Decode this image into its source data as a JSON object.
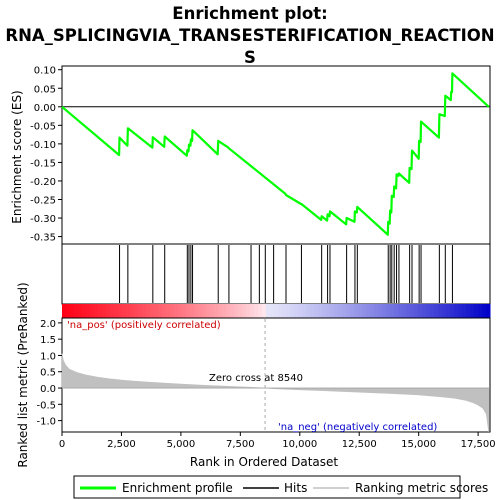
{
  "chart_data": {
    "type": "line",
    "title": "Enrichment plot: RNA_SPLICINGVIA_TRANSESTERIFICATION_REACTIONS",
    "title_lines": [
      "Enrichment plot:",
      "RNA_SPLICINGVIA_TRANSESTERIFICATION_REACTION",
      "S"
    ],
    "top_panel": {
      "ylabel": "Enrichment score (ES)",
      "ylim": [
        -0.37,
        0.11
      ],
      "yticks": [
        0.1,
        0.05,
        0.0,
        -0.05,
        -0.1,
        -0.15,
        -0.2,
        -0.25,
        -0.3,
        -0.35
      ],
      "ytick_labels": [
        "0.10",
        "0.05",
        "0.00",
        "-0.05",
        "-0.10",
        "-0.15",
        "-0.20",
        "-0.25",
        "-0.30",
        "-0.35"
      ],
      "series": [
        {
          "name": "Enrichment profile",
          "color": "#00ff00",
          "x": [
            0,
            2400,
            2420,
            2750,
            2770,
            3800,
            3820,
            4300,
            4320,
            5250,
            5270,
            5320,
            5340,
            5400,
            5420,
            5470,
            5490,
            6550,
            6570,
            7000,
            7020,
            9400,
            9420,
            10050,
            10070,
            10900,
            10920,
            11150,
            11170,
            11250,
            11270,
            11950,
            11970,
            12300,
            12320,
            12400,
            12420,
            13700,
            13720,
            13780,
            13800,
            13850,
            13870,
            13950,
            13970,
            14050,
            14070,
            14150,
            14170,
            14600,
            14620,
            14700,
            14720,
            15000,
            15020,
            15080,
            15100,
            15850,
            15870,
            16100,
            16120,
            16350,
            16370,
            16400,
            16420,
            17950
          ],
          "y": [
            0.0,
            -0.13,
            -0.083,
            -0.105,
            -0.058,
            -0.11,
            -0.082,
            -0.108,
            -0.08,
            -0.132,
            -0.117,
            -0.12,
            -0.102,
            -0.105,
            -0.088,
            -0.092,
            -0.063,
            -0.128,
            -0.092,
            -0.11,
            -0.112,
            -0.235,
            -0.238,
            -0.262,
            -0.262,
            -0.305,
            -0.295,
            -0.307,
            -0.29,
            -0.295,
            -0.282,
            -0.317,
            -0.3,
            -0.31,
            -0.282,
            -0.285,
            -0.27,
            -0.345,
            -0.31,
            -0.315,
            -0.28,
            -0.285,
            -0.24,
            -0.243,
            -0.215,
            -0.22,
            -0.182,
            -0.186,
            -0.18,
            -0.205,
            -0.165,
            -0.168,
            -0.118,
            -0.14,
            -0.092,
            -0.095,
            -0.04,
            -0.083,
            -0.02,
            -0.025,
            0.03,
            0.018,
            0.04,
            0.04,
            0.09,
            0.0
          ]
        }
      ],
      "hits": [
        2420,
        2770,
        3820,
        4320,
        5270,
        5340,
        5420,
        5490,
        6570,
        7020,
        7950,
        8300,
        8550,
        8900,
        9420,
        10070,
        10920,
        11170,
        11270,
        11970,
        12320,
        12420,
        13720,
        13800,
        13870,
        13970,
        14070,
        14170,
        14620,
        14720,
        15020,
        15100,
        15870,
        16120,
        16420
      ]
    },
    "ranking_panel": {
      "ylabel": "Ranked list metric (PreRanked)",
      "xlabel": "Rank in Ordered Dataset",
      "xlim": [
        0,
        18000
      ],
      "xticks": [
        0,
        2500,
        5000,
        7500,
        10000,
        12500,
        15000,
        17500
      ],
      "xtick_labels": [
        "0",
        "2,500",
        "5,000",
        "7,500",
        "10,000",
        "12,500",
        "15,000",
        "17,500"
      ],
      "ylim": [
        -1.35,
        2.15
      ],
      "yticks": [
        2.0,
        1.5,
        1.0,
        0.5,
        0.0,
        -0.5,
        -1.0
      ],
      "ytick_labels": [
        "2.0",
        "1.5",
        "1.0",
        "0.5",
        "0.0",
        "-0.5",
        "-1.0"
      ],
      "series": [
        {
          "name": "Ranking metric scores",
          "color": "#c0c0c0",
          "x": [
            0,
            50,
            150,
            300,
            600,
            1000,
            1500,
            2000,
            2500,
            3000,
            4000,
            5000,
            6000,
            7000,
            8000,
            8540,
            9000,
            10000,
            11000,
            12000,
            13000,
            14000,
            15000,
            16000,
            16500,
            17000,
            17300,
            17500,
            17700,
            17850,
            17950
          ],
          "y": [
            1.05,
            0.85,
            0.7,
            0.58,
            0.48,
            0.4,
            0.33,
            0.28,
            0.24,
            0.21,
            0.16,
            0.12,
            0.08,
            0.05,
            0.02,
            0.0,
            -0.02,
            -0.05,
            -0.08,
            -0.11,
            -0.14,
            -0.17,
            -0.21,
            -0.27,
            -0.31,
            -0.38,
            -0.45,
            -0.52,
            -0.62,
            -0.8,
            -1.35
          ]
        }
      ],
      "zero_cross_label": "Zero cross at 8540",
      "zero_cross": 8540,
      "pos_label": "'na_pos' (positively correlated)",
      "neg_label": "'na_neg' (negatively correlated)"
    },
    "legend": [
      "Enrichment profile",
      "Hits",
      "Ranking metric scores"
    ]
  }
}
